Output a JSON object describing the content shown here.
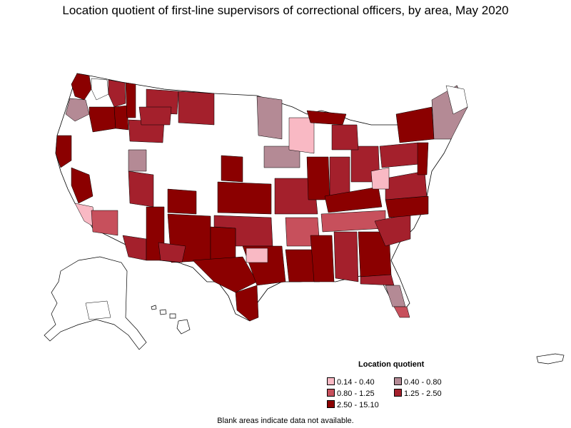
{
  "title": "Location quotient of first-line supervisors of correctional officers, by area, May 2020",
  "legend": {
    "title": "Location quotient",
    "items": [
      {
        "label": "0.14 - 0.40",
        "color": "#f9b9c4"
      },
      {
        "label": "0.40 - 0.80",
        "color": "#b48a95"
      },
      {
        "label": "0.80 - 1.25",
        "color": "#c7505c"
      },
      {
        "label": "1.25 - 2.50",
        "color": "#a4202c"
      },
      {
        "label": "2.50 - 15.10",
        "color": "#8b0000"
      }
    ]
  },
  "footnote": "Blank areas indicate data not available.",
  "colors": {
    "border": "#000000",
    "no_data": "#ffffff"
  }
}
